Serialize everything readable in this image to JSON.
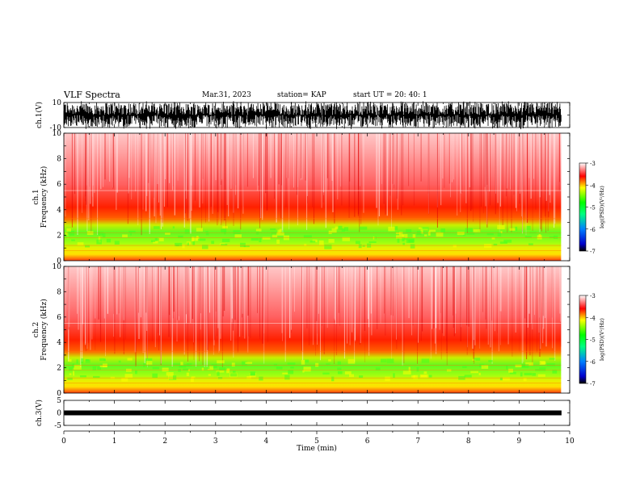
{
  "header": {
    "title": "VLF Spectra",
    "date": "Mar.31, 2023",
    "station": "station= KAP",
    "start_ut": "start UT =  20: 40: 1"
  },
  "chart_data": [
    {
      "type": "line",
      "name_id": "ch1-waveform",
      "ylabel": "ch.1(V)",
      "ylim": [
        -10,
        10
      ],
      "yticks": [
        "10",
        "-10"
      ],
      "xlim": [
        0,
        10
      ]
    },
    {
      "type": "heatmap",
      "name_id": "ch1-spectrogram",
      "ylabel": "ch.1\nFrequency (kHz)",
      "ylabel_lines": [
        "ch.1",
        "Frequency (kHz)"
      ],
      "ylim": [
        0,
        10
      ],
      "yticks": [
        "0",
        "2",
        "4",
        "6",
        "8",
        "10"
      ],
      "xlim": [
        0,
        10
      ],
      "data_end_min": 9.83,
      "colorbar": {
        "label": "log(PSD)(V²/Hz)",
        "range": [
          -7,
          -3
        ],
        "ticks": [
          "-3",
          "-4",
          "-5",
          "-6",
          "-7"
        ]
      }
    },
    {
      "type": "heatmap",
      "name_id": "ch2-spectrogram",
      "ylabel": "ch.2\nFrequency (kHz)",
      "ylabel_lines": [
        "ch.2",
        "Frequency (kHz)"
      ],
      "ylim": [
        0,
        10
      ],
      "yticks": [
        "0",
        "2",
        "4",
        "6",
        "8",
        "10"
      ],
      "xlim": [
        0,
        10
      ],
      "data_end_min": 9.83,
      "colorbar": {
        "label": "log(PSD)(V²/Hz)",
        "range": [
          -7,
          -3
        ],
        "ticks": [
          "-3",
          "-4",
          "-5",
          "-6",
          "-7"
        ]
      }
    },
    {
      "type": "line",
      "name_id": "ch3-waveform",
      "ylabel": "ch.3(V)",
      "ylim": [
        -5,
        5
      ],
      "yticks": [
        "5",
        "0",
        "-5"
      ],
      "xlim": [
        0,
        10
      ],
      "xlabel": "Time (min)",
      "xticks": [
        "0",
        "1",
        "2",
        "3",
        "4",
        "5",
        "6",
        "7",
        "8",
        "9",
        "10"
      ]
    }
  ],
  "colors": {
    "high": "#ff0000",
    "mid": "#ffff00",
    "low": "#00ff00",
    "background": "#ffffff"
  }
}
